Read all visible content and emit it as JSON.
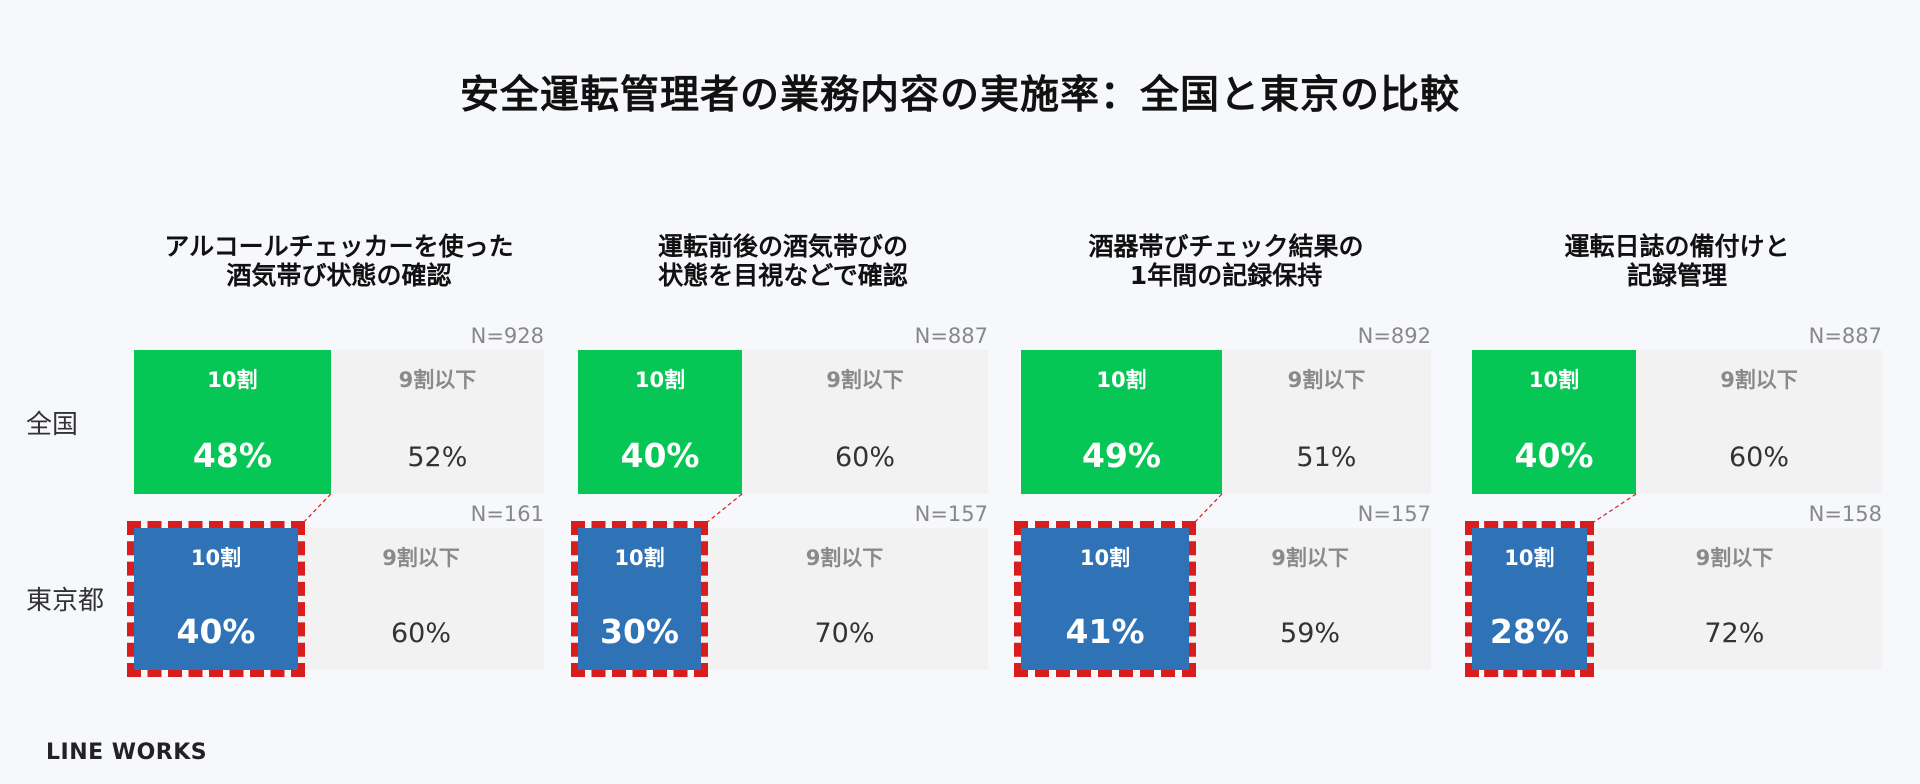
{
  "title": "安全運転管理者の業務内容の実施率：全国と東京の比較",
  "row_labels": {
    "national": "全国",
    "tokyo": "東京都"
  },
  "logo": "LINE WORKS",
  "colors": {
    "national": "#06c755",
    "tokyo": "#2f73b6",
    "rest": "#f2f2f2",
    "highlight": "#d91c1c"
  },
  "chart_data": {
    "type": "bar",
    "stacked": true,
    "percent": true,
    "title": "安全運転管理者の業務内容の実施率：全国と東京の比較",
    "segment_labels": [
      "10割",
      "9割以下"
    ],
    "series_names": [
      "全国",
      "東京都"
    ],
    "panels": [
      {
        "title": "アルコールチェッカーを使った\n酒気帯び状態の確認",
        "national": {
          "n": "N=928",
          "full_label": "10割",
          "full_value": 48,
          "full_text": "48%",
          "rest_label": "9割以下",
          "rest_value": 52,
          "rest_text": "52%"
        },
        "tokyo": {
          "n": "N=161",
          "full_label": "10割",
          "full_value": 40,
          "full_text": "40%",
          "rest_label": "9割以下",
          "rest_value": 60,
          "rest_text": "60%"
        }
      },
      {
        "title": "運転前後の酒気帯びの\n状態を目視などで確認",
        "national": {
          "n": "N=887",
          "full_label": "10割",
          "full_value": 40,
          "full_text": "40%",
          "rest_label": "9割以下",
          "rest_value": 60,
          "rest_text": "60%"
        },
        "tokyo": {
          "n": "N=157",
          "full_label": "10割",
          "full_value": 30,
          "full_text": "30%",
          "rest_label": "9割以下",
          "rest_value": 70,
          "rest_text": "70%"
        }
      },
      {
        "title": "酒器帯びチェック結果の\n1年間の記録保持",
        "national": {
          "n": "N=892",
          "full_label": "10割",
          "full_value": 49,
          "full_text": "49%",
          "rest_label": "9割以下",
          "rest_value": 51,
          "rest_text": "51%"
        },
        "tokyo": {
          "n": "N=157",
          "full_label": "10割",
          "full_value": 41,
          "full_text": "41%",
          "rest_label": "9割以下",
          "rest_value": 59,
          "rest_text": "59%"
        }
      },
      {
        "title": "運転日誌の備付けと\n記録管理",
        "national": {
          "n": "N=887",
          "full_label": "10割",
          "full_value": 40,
          "full_text": "40%",
          "rest_label": "9割以下",
          "rest_value": 60,
          "rest_text": "60%"
        },
        "tokyo": {
          "n": "N=158",
          "full_label": "10割",
          "full_value": 28,
          "full_text": "28%",
          "rest_label": "9割以下",
          "rest_value": 72,
          "rest_text": "72%"
        }
      }
    ]
  }
}
